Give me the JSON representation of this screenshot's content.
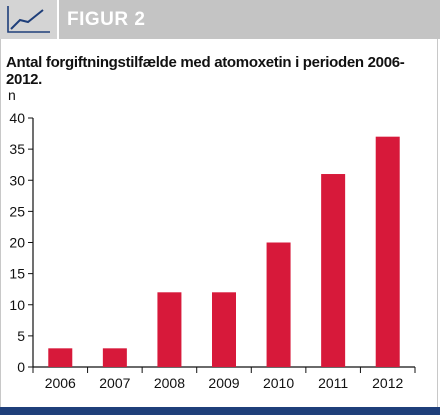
{
  "header": {
    "label": "FIGUR 2",
    "icon": "line-chart-icon",
    "band_color": "#c4c4c4"
  },
  "chart_data": {
    "type": "bar",
    "title": "Antal forgiftningstilfælde med atomoxetin i perioden 2006-2012.",
    "ylabel": "n",
    "xlabel": "",
    "categories": [
      "2006",
      "2007",
      "2008",
      "2009",
      "2010",
      "2011",
      "2012"
    ],
    "values": [
      3,
      3,
      12,
      12,
      20,
      31,
      37
    ],
    "ylim": [
      0,
      40
    ],
    "yticks": [
      0,
      5,
      10,
      15,
      20,
      25,
      30,
      35,
      40
    ],
    "grid": false,
    "bar_color": "#d7193a"
  },
  "footer": {
    "bar_color": "#1f3f7a"
  }
}
